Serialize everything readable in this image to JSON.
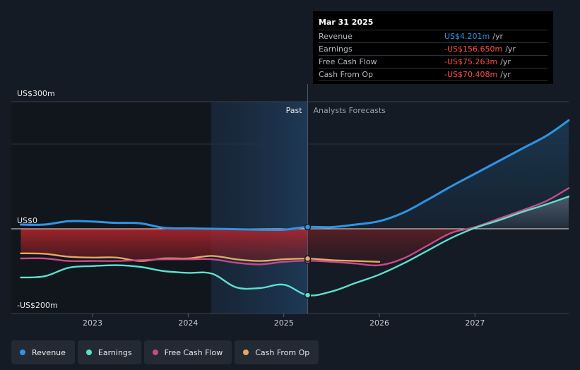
{
  "tooltip": {
    "date": "Mar 31 2025",
    "rows": [
      {
        "label": "Revenue",
        "value": "US$4.201m",
        "unit": "/yr",
        "color": "#2d95e6"
      },
      {
        "label": "Earnings",
        "value": "-US$156.650m",
        "unit": "/yr",
        "color": "#ff4b4b"
      },
      {
        "label": "Free Cash Flow",
        "value": "-US$75.263m",
        "unit": "/yr",
        "color": "#ff4b4b"
      },
      {
        "label": "Cash From Op",
        "value": "-US$70.408m",
        "unit": "/yr",
        "color": "#ff4b4b"
      }
    ]
  },
  "periods": {
    "past": "Past",
    "forecast": "Analysts Forecasts"
  },
  "legend": [
    {
      "label": "Revenue",
      "color": "#2d95e6"
    },
    {
      "label": "Earnings",
      "color": "#5ee0cf"
    },
    {
      "label": "Free Cash Flow",
      "color": "#c94a86"
    },
    {
      "label": "Cash From Op",
      "color": "#e6a862"
    }
  ],
  "chart_data": {
    "type": "line",
    "title": "",
    "xlabel": "",
    "ylabel": "",
    "y_tick_labels": [
      "US$300m",
      "US$0",
      "-US$200m"
    ],
    "y_tick_values": [
      300,
      0,
      -200
    ],
    "ylim": [
      -200,
      300
    ],
    "xlim": [
      2022.15,
      2027.98
    ],
    "x_ticks": [
      2023,
      2024,
      2025,
      2026,
      2027
    ],
    "x_tick_labels": [
      "2023",
      "2024",
      "2025",
      "2026",
      "2027"
    ],
    "past_range": [
      2024.24,
      2025.25
    ],
    "forecast_start": 2025.25,
    "series": [
      {
        "name": "Revenue",
        "color": "#2d95e6",
        "x": [
          2022.25,
          2022.5,
          2022.75,
          2023.0,
          2023.25,
          2023.5,
          2023.75,
          2024.0,
          2024.25,
          2024.5,
          2024.75,
          2025.0,
          2025.25,
          2025.5,
          2025.75,
          2026.0,
          2026.25,
          2026.5,
          2026.75,
          2027.0,
          2027.25,
          2027.5,
          2027.75,
          2027.98
        ],
        "values": [
          10,
          10,
          18,
          17,
          14,
          13,
          2,
          1,
          0,
          -1,
          -2,
          -2,
          4.2,
          4,
          10,
          18,
          38,
          68,
          100,
          130,
          160,
          190,
          220,
          256
        ]
      },
      {
        "name": "Earnings",
        "color": "#5ee0cf",
        "x": [
          2022.25,
          2022.5,
          2022.75,
          2023.0,
          2023.25,
          2023.5,
          2023.75,
          2024.0,
          2024.25,
          2024.5,
          2024.75,
          2025.0,
          2025.25,
          2025.5,
          2025.75,
          2026.0,
          2026.25,
          2026.5,
          2026.75,
          2027.0,
          2027.25,
          2027.5,
          2027.75,
          2027.98
        ],
        "values": [
          -115,
          -112,
          -92,
          -88,
          -86,
          -90,
          -100,
          -104,
          -106,
          -138,
          -140,
          -132,
          -156.65,
          -148,
          -128,
          -108,
          -82,
          -52,
          -22,
          2,
          20,
          40,
          58,
          76
        ]
      },
      {
        "name": "Free Cash Flow",
        "color": "#c94a86",
        "x": [
          2022.25,
          2022.5,
          2022.75,
          2023.0,
          2023.25,
          2023.5,
          2023.75,
          2024.0,
          2024.25,
          2024.5,
          2024.75,
          2025.0,
          2025.25,
          2025.5,
          2025.75,
          2026.0,
          2026.25,
          2026.5,
          2026.75,
          2027.0,
          2027.25,
          2027.5,
          2027.75,
          2027.98
        ],
        "values": [
          -70,
          -70,
          -76,
          -76,
          -76,
          -74,
          -72,
          -72,
          -72,
          -80,
          -84,
          -78,
          -75.26,
          -78,
          -82,
          -86,
          -70,
          -40,
          -10,
          4,
          24,
          44,
          66,
          96
        ]
      },
      {
        "name": "Cash From Op",
        "color": "#e6a862",
        "x": [
          2022.25,
          2022.5,
          2022.75,
          2023.0,
          2023.25,
          2023.5,
          2023.75,
          2024.0,
          2024.25,
          2024.5,
          2024.75,
          2025.0,
          2025.25,
          2025.5,
          2025.75,
          2026.0
        ],
        "values": [
          -58,
          -59,
          -66,
          -68,
          -68,
          -76,
          -70,
          -70,
          -64,
          -72,
          -76,
          -72,
          -70.41,
          -74,
          -76,
          -78
        ]
      }
    ]
  }
}
